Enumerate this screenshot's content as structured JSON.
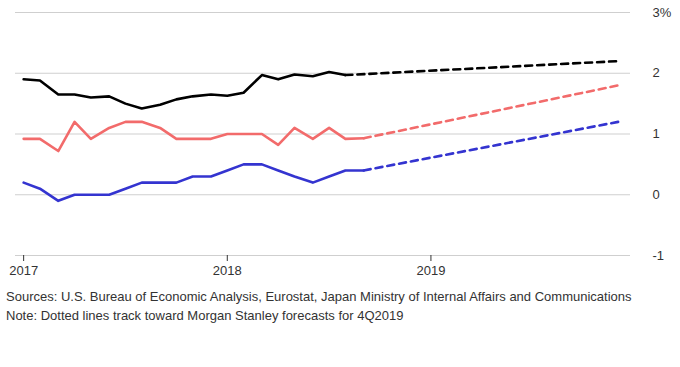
{
  "chart_data": {
    "type": "line",
    "source": "Sources: U.S. Bureau of Economic Analysis, Eurostat, Japan Ministry of Internal Affairs and Communications",
    "note": "Note: Dotted lines track toward Morgan Stanley forecasts for 4Q2019",
    "x": [
      2017,
      2017.08,
      2017.17,
      2017.25,
      2017.33,
      2017.42,
      2017.5,
      2017.58,
      2017.67,
      2017.75,
      2017.83,
      2017.92,
      2018,
      2018.08,
      2018.17,
      2018.25,
      2018.33,
      2018.42,
      2018.5,
      2018.58,
      2018.67,
      2019.92
    ],
    "xlim": [
      2016.96,
      2019.98
    ],
    "xticks": [
      2017,
      2018,
      2019
    ],
    "ylim": [
      -1,
      3
    ],
    "yticks": [
      {
        "value": 3,
        "label": "3%"
      },
      2,
      1,
      0,
      -1
    ],
    "grid": true,
    "series": [
      {
        "color": "#000000",
        "line_style": "solid",
        "values": [
          1.9,
          1.88,
          1.65,
          1.65,
          1.6,
          1.62,
          1.5,
          1.42,
          1.48,
          1.57,
          1.62,
          1.65,
          1.63,
          1.68,
          1.97,
          1.9,
          1.98,
          1.95,
          2.02,
          1.97,
          null,
          null
        ]
      },
      {
        "color": "#000000",
        "line_style": "dashed",
        "values": [
          null,
          null,
          null,
          null,
          null,
          null,
          null,
          null,
          null,
          null,
          null,
          null,
          null,
          null,
          null,
          null,
          null,
          null,
          null,
          1.97,
          null,
          2.2
        ]
      },
      {
        "color": "#f26b6b",
        "line_style": "solid",
        "values": [
          0.92,
          0.92,
          0.72,
          1.2,
          0.92,
          1.1,
          1.2,
          1.2,
          1.1,
          0.92,
          0.92,
          0.92,
          1.0,
          1.0,
          1.0,
          0.82,
          1.1,
          0.92,
          1.1,
          0.92,
          0.93,
          null
        ]
      },
      {
        "color": "#f26b6b",
        "line_style": "dashed",
        "values": [
          null,
          null,
          null,
          null,
          null,
          null,
          null,
          null,
          null,
          null,
          null,
          null,
          null,
          null,
          null,
          null,
          null,
          null,
          null,
          null,
          0.93,
          1.8
        ]
      },
      {
        "color": "#3434d0",
        "line_style": "solid",
        "values": [
          0.2,
          0.1,
          -0.1,
          0.0,
          0.0,
          0.0,
          0.1,
          0.2,
          0.2,
          0.2,
          0.3,
          0.3,
          0.4,
          0.5,
          0.5,
          0.4,
          0.3,
          0.2,
          0.3,
          0.4,
          0.4,
          null
        ]
      },
      {
        "color": "#3434d0",
        "line_style": "dashed",
        "values": [
          null,
          null,
          null,
          null,
          null,
          null,
          null,
          null,
          null,
          null,
          null,
          null,
          null,
          null,
          null,
          null,
          null,
          null,
          null,
          null,
          0.4,
          1.2
        ]
      }
    ]
  }
}
